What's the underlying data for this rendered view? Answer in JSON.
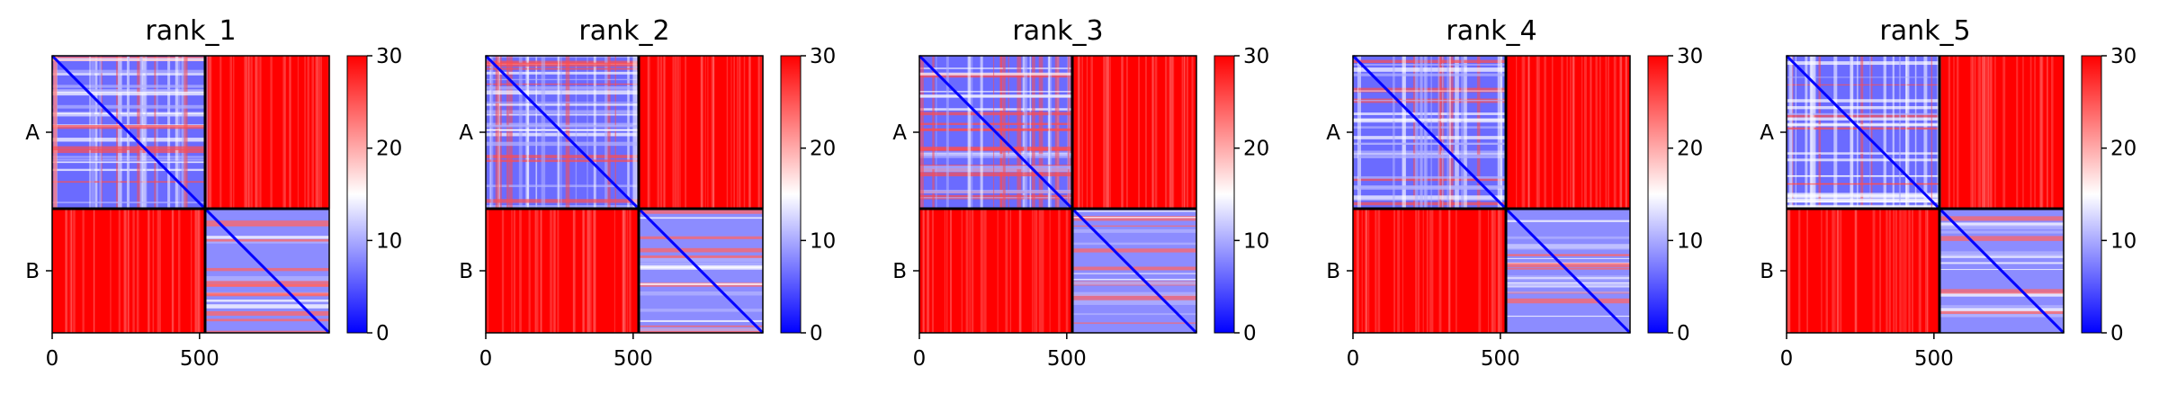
{
  "chart_data": {
    "type": "heatmap",
    "colormap": "bwr",
    "colors": {
      "low": "#0000ff",
      "mid": "#ffffff",
      "high": "#ff0000",
      "divider": "#000000"
    },
    "colorbar": {
      "min": 0,
      "max": 30,
      "ticks": [
        "0",
        "10",
        "20",
        "30"
      ]
    },
    "xticks": [
      "0",
      "500"
    ],
    "yticks": [
      "A",
      "B"
    ],
    "x_range": [
      0,
      940
    ],
    "chain_boundary": 520,
    "panels": [
      {
        "title": "rank_1"
      },
      {
        "title": "rank_2"
      },
      {
        "title": "rank_3"
      },
      {
        "title": "rank_4"
      },
      {
        "title": "rank_5"
      }
    ]
  }
}
